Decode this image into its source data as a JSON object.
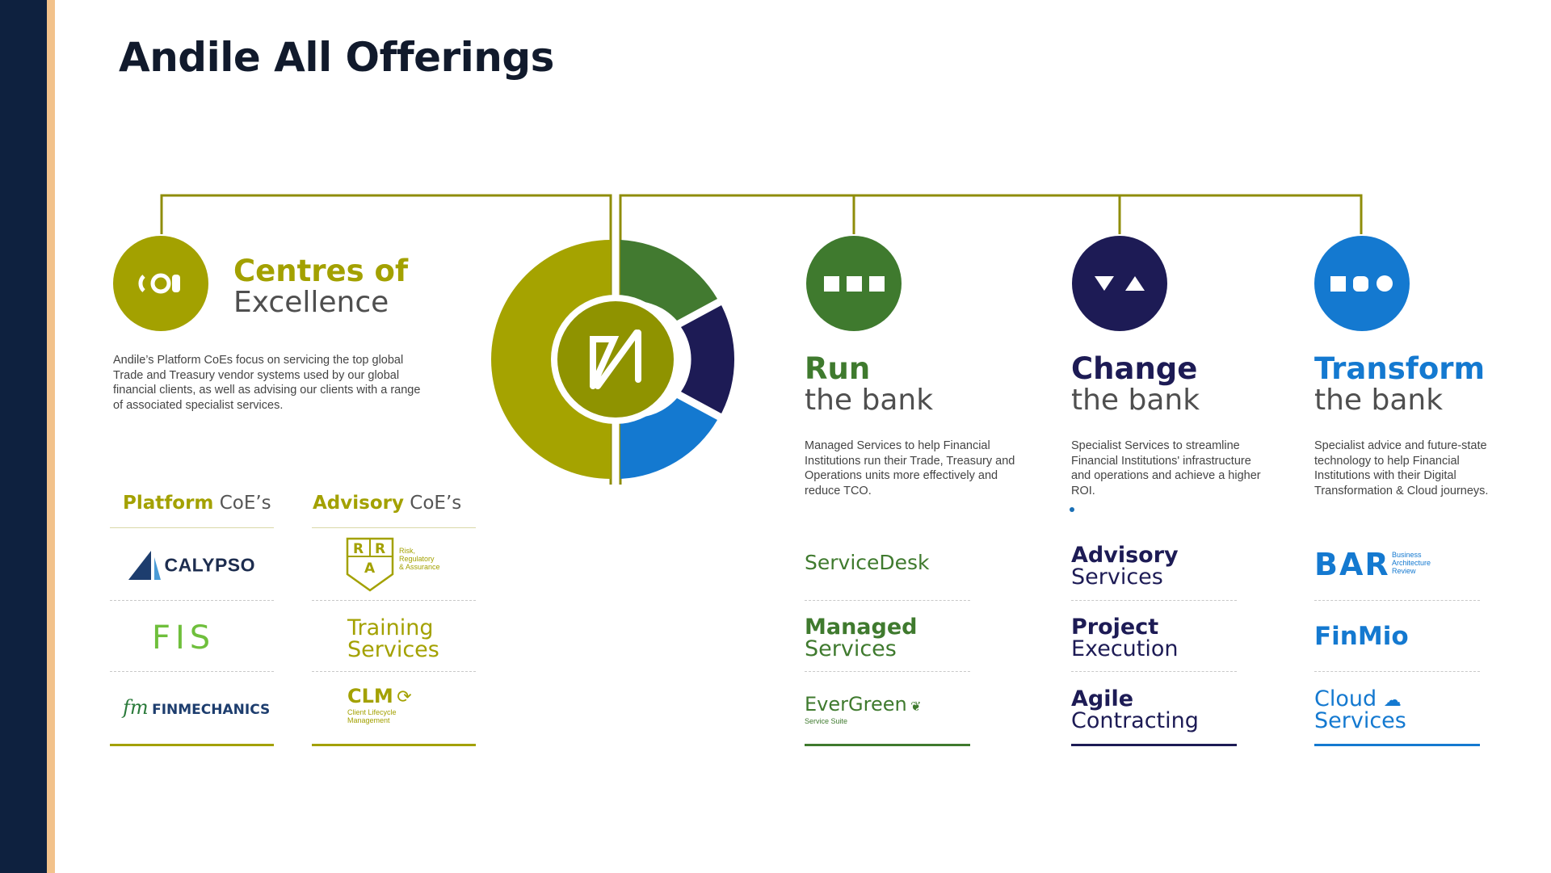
{
  "title": "Andile All Offerings",
  "colors": {
    "olive": "#a3a100",
    "green": "#3f7a2e",
    "navy": "#1d1b55",
    "blue": "#1479d0",
    "sidebar": "#0e213f",
    "stripe": "#f2c28b"
  },
  "centre_logo": "Andile-N-icon",
  "coe": {
    "icon": "coe-icon",
    "title": "Centres of",
    "subtitle": "Excellence",
    "description": "Andile’s Platform CoEs focus on servicing the top global Trade and Treasury vendor systems used by our global financial clients, as well as advising our clients with a range of associated specialist services.",
    "platform": {
      "label_bold": "Platform",
      "label_rest": "CoE’s",
      "items": [
        "CALYPSO",
        "FIS",
        "FINMECHANICS"
      ]
    },
    "advisory": {
      "label_bold": "Advisory",
      "label_rest": "CoE’s",
      "rra": {
        "letters": [
          "R",
          "R",
          "A"
        ],
        "caption": [
          "Risk,",
          "Regulatory",
          "& Assurance"
        ]
      },
      "training": {
        "line1": "Training",
        "line2": "Services"
      },
      "clm": {
        "name": "CLM",
        "caption": [
          "Client Lifecycle",
          "Management"
        ]
      }
    }
  },
  "run": {
    "icon": "three-squares-icon",
    "title": "Run",
    "subtitle": "the bank",
    "description": "Managed Services to help Financial Institutions run their Trade, Treasury and Operations units more effectively and reduce TCO.",
    "service_desk": {
      "part1": "ServiceDesk"
    },
    "managed": {
      "line1": "Managed",
      "line2": "Services"
    },
    "evergreen": {
      "name": "EverGreen",
      "caption": "Service Suite"
    }
  },
  "change": {
    "icon": "triangles-icon",
    "title": "Change",
    "subtitle": "the bank",
    "description": "Specialist Services to streamline Financial Institutions' infrastructure and operations and achieve a higher ROI.",
    "advisory": {
      "line1": "Advisory",
      "line2": "Services"
    },
    "project": {
      "line1": "Project",
      "line2": "Execution"
    },
    "agile": {
      "line1": "Agile",
      "line2": "Contracting"
    }
  },
  "transform": {
    "icon": "square-circle-icon",
    "title": "Transform",
    "subtitle": "the bank",
    "description": "Specialist advice and future-state technology to help Financial Institutions with their Digital Transformation & Cloud journeys.",
    "bar": {
      "name": "BAR",
      "caption": [
        "Business",
        "Architecture",
        "Review"
      ]
    },
    "finmio": "FinMio",
    "cloud": {
      "line1": "Cloud",
      "line2": "Services"
    }
  }
}
